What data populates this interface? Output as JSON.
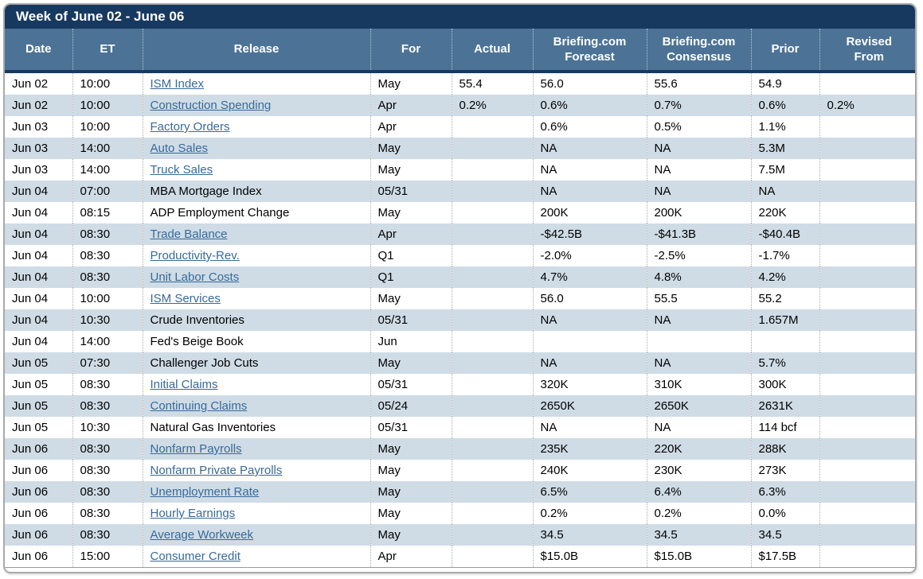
{
  "title": "Week of June 02 - June 06",
  "colors": {
    "title_bar": "#17395f",
    "header_bg": "#4c7396",
    "header_bottom_border": "#17395f",
    "row_alt": "#cfdce6",
    "link": "#376a9a",
    "outer_border": "#a9a9a9",
    "text": "#000000"
  },
  "table": {
    "columns": [
      "Date",
      "ET",
      "Release",
      "For",
      "Actual",
      "Briefing.com\nForecast",
      "Briefing.com\nConsensus",
      "Prior",
      "Revised\nFrom"
    ],
    "rows": [
      {
        "date": "Jun 02",
        "et": "10:00",
        "release": "ISM Index",
        "link": true,
        "for": "May",
        "actual": "55.4",
        "forecast": "56.0",
        "consensus": "55.6",
        "prior": "54.9",
        "revised": ""
      },
      {
        "date": "Jun 02",
        "et": "10:00",
        "release": "Construction Spending",
        "link": true,
        "for": "Apr",
        "actual": "0.2%",
        "forecast": "0.6%",
        "consensus": "0.7%",
        "prior": "0.6%",
        "revised": "0.2%"
      },
      {
        "date": "Jun 03",
        "et": "10:00",
        "release": "Factory Orders",
        "link": true,
        "for": "Apr",
        "actual": "",
        "forecast": "0.6%",
        "consensus": "0.5%",
        "prior": "1.1%",
        "revised": ""
      },
      {
        "date": "Jun 03",
        "et": "14:00",
        "release": "Auto Sales",
        "link": true,
        "for": "May",
        "actual": "",
        "forecast": "NA",
        "consensus": "NA",
        "prior": "5.3M",
        "revised": ""
      },
      {
        "date": "Jun 03",
        "et": "14:00",
        "release": "Truck Sales",
        "link": true,
        "for": "May",
        "actual": "",
        "forecast": "NA",
        "consensus": "NA",
        "prior": "7.5M",
        "revised": ""
      },
      {
        "date": "Jun 04",
        "et": "07:00",
        "release": "MBA Mortgage Index",
        "link": false,
        "for": "05/31",
        "actual": "",
        "forecast": "NA",
        "consensus": "NA",
        "prior": "NA",
        "revised": ""
      },
      {
        "date": "Jun 04",
        "et": "08:15",
        "release": "ADP Employment Change",
        "link": false,
        "for": "May",
        "actual": "",
        "forecast": "200K",
        "consensus": "200K",
        "prior": "220K",
        "revised": ""
      },
      {
        "date": "Jun 04",
        "et": "08:30",
        "release": "Trade Balance",
        "link": true,
        "for": "Apr",
        "actual": "",
        "forecast": "-$42.5B",
        "consensus": "-$41.3B",
        "prior": "-$40.4B",
        "revised": ""
      },
      {
        "date": "Jun 04",
        "et": "08:30",
        "release": "Productivity-Rev.",
        "link": true,
        "for": "Q1",
        "actual": "",
        "forecast": "-2.0%",
        "consensus": "-2.5%",
        "prior": "-1.7%",
        "revised": ""
      },
      {
        "date": "Jun 04",
        "et": "08:30",
        "release": "Unit Labor Costs",
        "link": true,
        "for": "Q1",
        "actual": "",
        "forecast": "4.7%",
        "consensus": "4.8%",
        "prior": "4.2%",
        "revised": ""
      },
      {
        "date": "Jun 04",
        "et": "10:00",
        "release": "ISM Services",
        "link": true,
        "for": "May",
        "actual": "",
        "forecast": "56.0",
        "consensus": "55.5",
        "prior": "55.2",
        "revised": ""
      },
      {
        "date": "Jun 04",
        "et": "10:30",
        "release": "Crude Inventories",
        "link": false,
        "for": "05/31",
        "actual": "",
        "forecast": "NA",
        "consensus": "NA",
        "prior": "1.657M",
        "revised": ""
      },
      {
        "date": "Jun 04",
        "et": "14:00",
        "release": "Fed's Beige Book",
        "link": false,
        "for": "Jun",
        "actual": "",
        "forecast": "",
        "consensus": "",
        "prior": "",
        "revised": ""
      },
      {
        "date": "Jun 05",
        "et": "07:30",
        "release": "Challenger Job Cuts",
        "link": false,
        "for": "May",
        "actual": "",
        "forecast": "NA",
        "consensus": "NA",
        "prior": "5.7%",
        "revised": ""
      },
      {
        "date": "Jun 05",
        "et": "08:30",
        "release": "Initial Claims",
        "link": true,
        "for": "05/31",
        "actual": "",
        "forecast": "320K",
        "consensus": "310K",
        "prior": "300K",
        "revised": ""
      },
      {
        "date": "Jun 05",
        "et": "08:30",
        "release": "Continuing Claims",
        "link": true,
        "for": "05/24",
        "actual": "",
        "forecast": "2650K",
        "consensus": "2650K",
        "prior": "2631K",
        "revised": ""
      },
      {
        "date": "Jun 05",
        "et": "10:30",
        "release": "Natural Gas Inventories",
        "link": false,
        "for": "05/31",
        "actual": "",
        "forecast": "NA",
        "consensus": "NA",
        "prior": "114 bcf",
        "revised": ""
      },
      {
        "date": "Jun 06",
        "et": "08:30",
        "release": "Nonfarm Payrolls",
        "link": true,
        "for": "May",
        "actual": "",
        "forecast": "235K",
        "consensus": "220K",
        "prior": "288K",
        "revised": ""
      },
      {
        "date": "Jun 06",
        "et": "08:30",
        "release": "Nonfarm Private Payrolls",
        "link": true,
        "for": "May",
        "actual": "",
        "forecast": "240K",
        "consensus": "230K",
        "prior": "273K",
        "revised": ""
      },
      {
        "date": "Jun 06",
        "et": "08:30",
        "release": "Unemployment Rate",
        "link": true,
        "for": "May",
        "actual": "",
        "forecast": "6.5%",
        "consensus": "6.4%",
        "prior": "6.3%",
        "revised": ""
      },
      {
        "date": "Jun 06",
        "et": "08:30",
        "release": "Hourly Earnings",
        "link": true,
        "for": "May",
        "actual": "",
        "forecast": "0.2%",
        "consensus": "0.2%",
        "prior": "0.0%",
        "revised": ""
      },
      {
        "date": "Jun 06",
        "et": "08:30",
        "release": "Average Workweek",
        "link": true,
        "for": "May",
        "actual": "",
        "forecast": "34.5",
        "consensus": "34.5",
        "prior": "34.5",
        "revised": ""
      },
      {
        "date": "Jun 06",
        "et": "15:00",
        "release": "Consumer Credit",
        "link": true,
        "for": "Apr",
        "actual": "",
        "forecast": "$15.0B",
        "consensus": "$15.0B",
        "prior": "$17.5B",
        "revised": ""
      }
    ]
  }
}
